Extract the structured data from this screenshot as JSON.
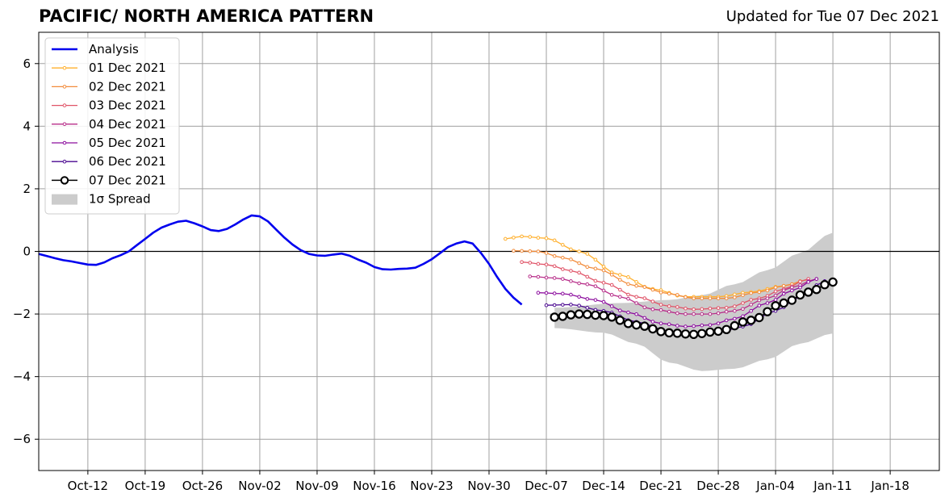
{
  "header": {
    "title": "PACIFIC/ NORTH AMERICA PATTERN",
    "updated": "Updated for Tue 07 Dec 2021"
  },
  "chart_data": {
    "type": "line",
    "xaxis": {
      "type": "date",
      "range": [
        "2021-10-06",
        "2022-01-24"
      ],
      "ticks": [
        "2021-10-12",
        "2021-10-19",
        "2021-10-26",
        "2021-11-02",
        "2021-11-09",
        "2021-11-16",
        "2021-11-23",
        "2021-11-30",
        "2021-12-07",
        "2021-12-14",
        "2021-12-21",
        "2021-12-28",
        "2022-01-04",
        "2022-01-11",
        "2022-01-18"
      ],
      "tick_labels": [
        "Oct-12",
        "Oct-19",
        "Oct-26",
        "Nov-02",
        "Nov-09",
        "Nov-16",
        "Nov-23",
        "Nov-30",
        "Dec-07",
        "Dec-14",
        "Dec-21",
        "Dec-28",
        "Jan-04",
        "Jan-11",
        "Jan-18"
      ]
    },
    "yaxis": {
      "ylim": [
        -7,
        7
      ],
      "ticks": [
        -6,
        -4,
        -2,
        0,
        2,
        4,
        6
      ],
      "tick_labels": [
        "−6",
        "−4",
        "−2",
        "0",
        "2",
        "4",
        "6"
      ]
    },
    "grid": true,
    "zero_line": true,
    "legend": {
      "placement": "top-left"
    },
    "analysis": {
      "name": "Analysis",
      "color": "#0000ee",
      "start": "2021-10-06",
      "values": [
        -0.08,
        -0.15,
        -0.22,
        -0.28,
        -0.32,
        -0.37,
        -0.42,
        -0.43,
        -0.35,
        -0.22,
        -0.12,
        0.0,
        0.2,
        0.4,
        0.6,
        0.76,
        0.86,
        0.95,
        0.98,
        0.9,
        0.8,
        0.68,
        0.65,
        0.72,
        0.86,
        1.02,
        1.15,
        1.12,
        0.96,
        0.7,
        0.44,
        0.22,
        0.04,
        -0.08,
        -0.13,
        -0.14,
        -0.1,
        -0.07,
        -0.14,
        -0.26,
        -0.36,
        -0.5,
        -0.57,
        -0.58,
        -0.56,
        -0.55,
        -0.52,
        -0.4,
        -0.25,
        -0.06,
        0.14,
        0.25,
        0.32,
        0.25,
        -0.05,
        -0.4,
        -0.82,
        -1.2,
        -1.48,
        -1.7
      ]
    },
    "forecasts": [
      {
        "name": "01 Dec 2021",
        "color": "#ffb02e",
        "start": "2021-12-02",
        "y0": 0.4,
        "pts": [
          [
            0,
            0.4
          ],
          [
            2,
            0.48
          ],
          [
            5,
            0.42
          ],
          [
            9,
            0.0
          ],
          [
            14,
            -0.75
          ],
          [
            18,
            -1.2
          ],
          [
            22,
            -1.45
          ],
          [
            26,
            -1.45
          ],
          [
            30,
            -1.3
          ],
          [
            34,
            -1.1
          ],
          [
            37,
            -0.9
          ]
        ]
      },
      {
        "name": "02 Dec 2021",
        "color": "#f28c3c",
        "start": "2021-12-03",
        "pts": [
          [
            0,
            0.02
          ],
          [
            3,
            0.0
          ],
          [
            6,
            -0.2
          ],
          [
            10,
            -0.55
          ],
          [
            15,
            -1.1
          ],
          [
            19,
            -1.35
          ],
          [
            22,
            -1.5
          ],
          [
            26,
            -1.5
          ],
          [
            30,
            -1.3
          ],
          [
            33,
            -1.1
          ],
          [
            36,
            -0.9
          ]
        ]
      },
      {
        "name": "03 Dec 2021",
        "color": "#e05468",
        "start": "2021-12-04",
        "pts": [
          [
            0,
            -0.34
          ],
          [
            3,
            -0.42
          ],
          [
            6,
            -0.62
          ],
          [
            10,
            -1.0
          ],
          [
            14,
            -1.45
          ],
          [
            18,
            -1.75
          ],
          [
            21,
            -1.85
          ],
          [
            25,
            -1.8
          ],
          [
            29,
            -1.5
          ],
          [
            32,
            -1.2
          ],
          [
            35,
            -0.88
          ]
        ]
      },
      {
        "name": "04 Dec 2021",
        "color": "#b82f8a",
        "start": "2021-12-05",
        "pts": [
          [
            0,
            -0.8
          ],
          [
            3,
            -0.85
          ],
          [
            7,
            -1.05
          ],
          [
            11,
            -1.45
          ],
          [
            15,
            -1.85
          ],
          [
            19,
            -2.0
          ],
          [
            22,
            -2.0
          ],
          [
            25,
            -1.9
          ],
          [
            29,
            -1.5
          ],
          [
            32,
            -1.15
          ],
          [
            35,
            -0.88
          ]
        ]
      },
      {
        "name": "05 Dec 2021",
        "color": "#8c0d9e",
        "start": "2021-12-06",
        "pts": [
          [
            0,
            -1.32
          ],
          [
            3,
            -1.35
          ],
          [
            7,
            -1.55
          ],
          [
            11,
            -1.95
          ],
          [
            15,
            -2.3
          ],
          [
            18,
            -2.4
          ],
          [
            21,
            -2.35
          ],
          [
            24,
            -2.15
          ],
          [
            28,
            -1.65
          ],
          [
            31,
            -1.25
          ],
          [
            34,
            -0.88
          ]
        ]
      },
      {
        "name": "06 Dec 2021",
        "color": "#4a0790",
        "start": "2021-12-07",
        "pts": [
          [
            0,
            -1.72
          ],
          [
            3,
            -1.7
          ],
          [
            7,
            -1.9
          ],
          [
            11,
            -2.25
          ],
          [
            15,
            -2.55
          ],
          [
            18,
            -2.62
          ],
          [
            21,
            -2.6
          ],
          [
            24,
            -2.4
          ],
          [
            28,
            -1.9
          ],
          [
            31,
            -1.45
          ],
          [
            34,
            -0.95
          ]
        ]
      }
    ],
    "latest": {
      "name": "07 Dec 2021",
      "color": "#000000",
      "start": "2021-12-08",
      "pts": [
        [
          0,
          -2.1
        ],
        [
          3,
          -2.0
        ],
        [
          6,
          -2.05
        ],
        [
          10,
          -2.35
        ],
        [
          14,
          -2.6
        ],
        [
          17,
          -2.65
        ],
        [
          20,
          -2.55
        ],
        [
          24,
          -2.2
        ],
        [
          28,
          -1.65
        ],
        [
          31,
          -1.3
        ],
        [
          34,
          -0.98
        ]
      ]
    },
    "spread": {
      "name": "1σ Spread",
      "color": "#cccccc",
      "start": "2021-12-08",
      "upper": [
        [
          0,
          -1.8
        ],
        [
          8,
          -1.65
        ],
        [
          14,
          -1.55
        ],
        [
          18,
          -1.4
        ],
        [
          22,
          -1.05
        ],
        [
          26,
          -0.6
        ],
        [
          30,
          -0.05
        ],
        [
          34,
          0.6
        ]
      ],
      "lower": [
        [
          0,
          -2.45
        ],
        [
          6,
          -2.6
        ],
        [
          10,
          -2.95
        ],
        [
          14,
          -3.55
        ],
        [
          18,
          -3.82
        ],
        [
          22,
          -3.75
        ],
        [
          26,
          -3.45
        ],
        [
          30,
          -2.95
        ],
        [
          34,
          -2.62
        ]
      ]
    },
    "legend_items": [
      "Analysis",
      "01 Dec 2021",
      "02 Dec 2021",
      "03 Dec 2021",
      "04 Dec 2021",
      "05 Dec 2021",
      "06 Dec 2021",
      "07 Dec 2021",
      "1σ Spread"
    ]
  }
}
